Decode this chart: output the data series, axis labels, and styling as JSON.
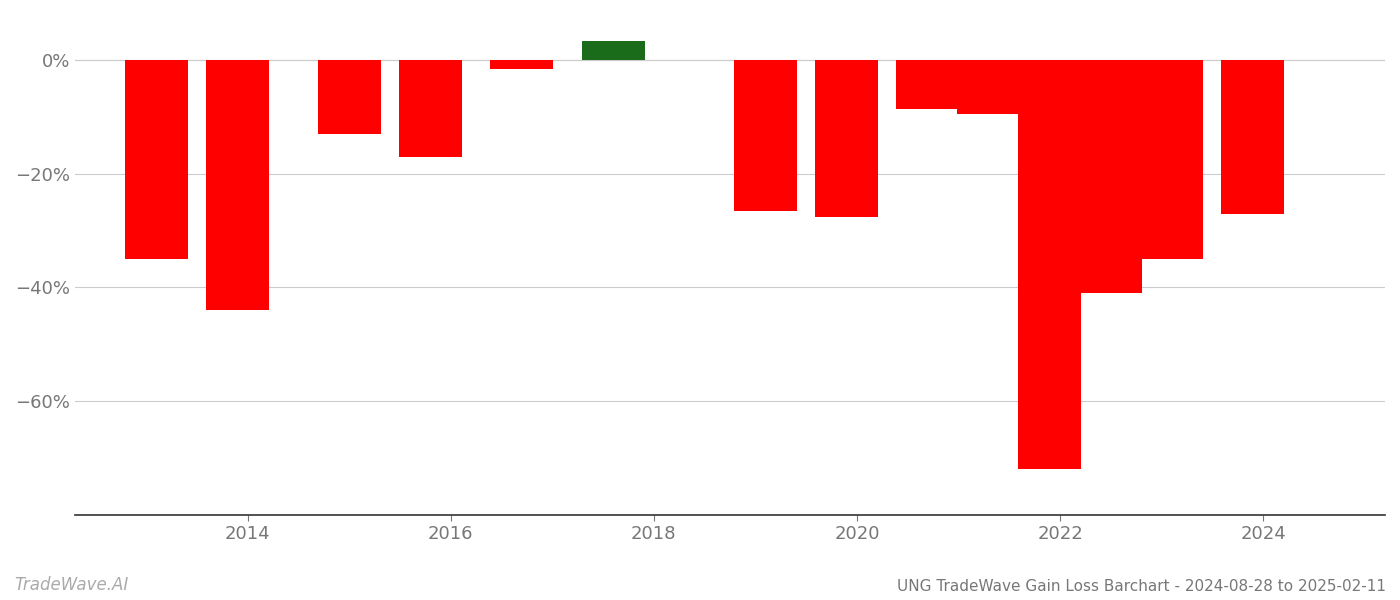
{
  "years": [
    2013.1,
    2013.9,
    2015.0,
    2015.8,
    2016.7,
    2017.6,
    2019.1,
    2019.9,
    2020.7,
    2021.3,
    2021.9,
    2022.5,
    2023.1,
    2023.9
  ],
  "values": [
    -35.0,
    -44.0,
    -13.0,
    -17.0,
    -1.5,
    3.5,
    -26.5,
    -27.5,
    -8.5,
    -9.5,
    -72.0,
    -41.0,
    -35.0,
    -27.0
  ],
  "bar_colors": [
    "#ff0000",
    "#ff0000",
    "#ff0000",
    "#ff0000",
    "#ff0000",
    "#1a6b1a",
    "#ff0000",
    "#ff0000",
    "#ff0000",
    "#ff0000",
    "#ff0000",
    "#ff0000",
    "#ff0000",
    "#ff0000"
  ],
  "title": "UNG TradeWave Gain Loss Barchart - 2024-08-28 to 2025-02-11",
  "watermark": "TradeWave.AI",
  "xlim": [
    2012.3,
    2025.2
  ],
  "ylim": [
    -80,
    8
  ],
  "yticks": [
    0,
    -20,
    -40,
    -60
  ],
  "ytick_labels": [
    "0%",
    "−20%",
    "−40%",
    "−60%"
  ],
  "xticks": [
    2014,
    2016,
    2018,
    2020,
    2022,
    2024
  ],
  "xtick_labels": [
    "2014",
    "2016",
    "2018",
    "2020",
    "2022",
    "2024"
  ],
  "background_color": "#ffffff",
  "grid_color": "#cccccc",
  "bar_width": 0.62
}
